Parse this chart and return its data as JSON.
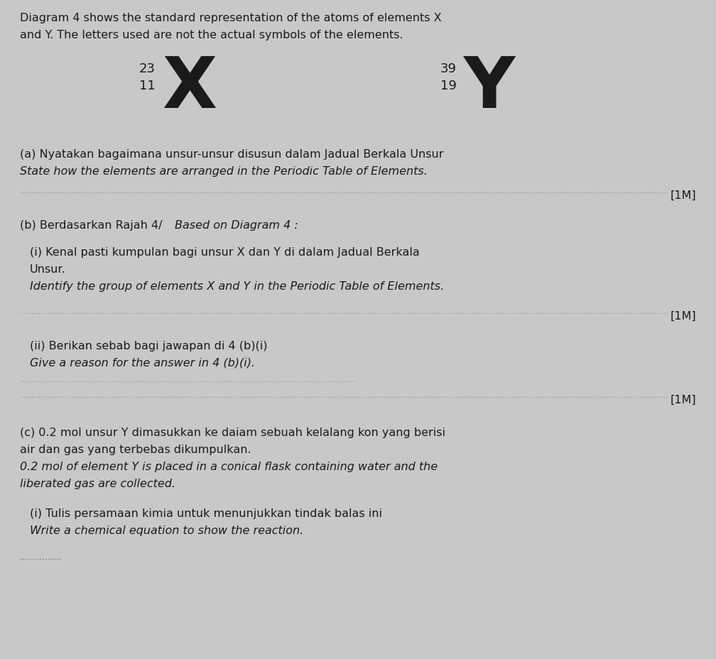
{
  "bg_color": "#c8c8c8",
  "text_color": "#1a1a1a",
  "header_line1": "Diagram 4 shows the standard representation of the atoms of elements X",
  "header_line2": "and Y. The letters used are not the actual symbols of the elements.",
  "element_X_mass": "23",
  "element_X_atomic": "11",
  "element_X_symbol": "X",
  "element_Y_mass": "39",
  "element_Y_atomic": "19",
  "element_Y_symbol": "Y",
  "section_a_malay": "(a) Nyatakan bagaimana unsur-unsur disusun dalam Jadual Berkala Unsur",
  "section_a_english": "State how the elements are arranged in the Periodic Table of Elements.",
  "mark_1m": "[1M]",
  "section_b_header_malay": "(b) Berdasarkan Rajah 4/",
  "section_b_header_english": "Based on Diagram 4 :",
  "section_bi_malay1": "(i) Kenal pasti kumpulan bagi unsur X dan Y di dalam Jadual Berkala",
  "section_bi_malay2": "Unsur.",
  "section_bi_english": "Identify the group of elements X and Y in the Periodic Table of Elements.",
  "section_bii_malay": "(ii) Berikan sebab bagi jawapan di 4 (b)(i)",
  "section_bii_english": "Give a reason for the answer in 4 (b)(i).",
  "section_c_malay1": "(c) 0.2 mol unsur Y dimasukkan ke daiam sebuah kelalang kon yang berisi",
  "section_c_malay2": "air dan gas yang terbebas dikumpulkan.",
  "section_c_english1": "0.2 mol of element Y is placed in a conical flask containing water and the",
  "section_c_english2": "liberated gas are collected.",
  "section_ci_malay": "(i) Tulis persamaan kimia untuk menunjukkan tindak balas ini",
  "section_ci_english": "Write a chemical equation to show the reaction.",
  "dots_short": "..............."
}
